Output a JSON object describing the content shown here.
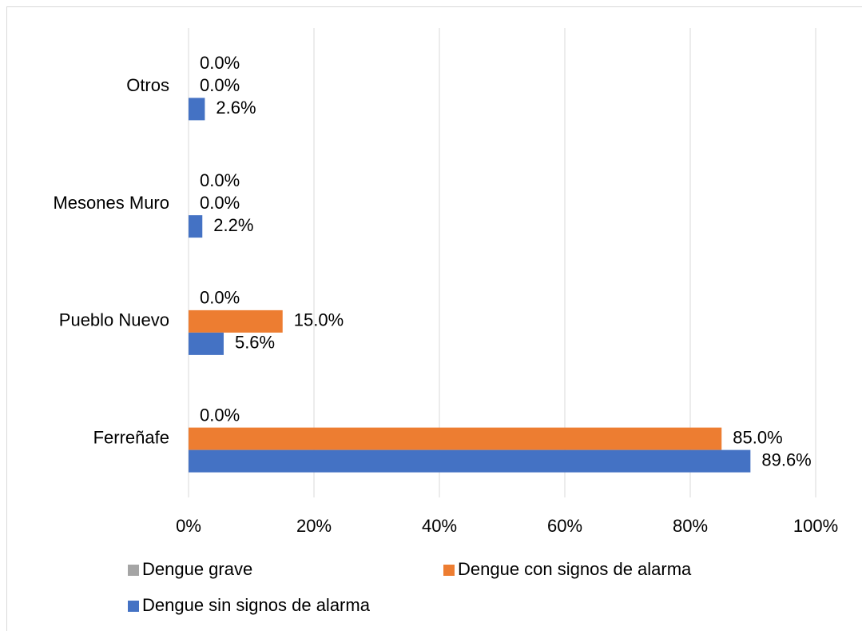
{
  "chart_data": {
    "type": "hbar",
    "categories": [
      "Ferreñafe",
      "Pueblo Nuevo",
      "Mesones Muro",
      "Otros"
    ],
    "series": [
      {
        "name": "Dengue grave",
        "color": "#a5a5a5",
        "values": [
          0,
          0,
          0,
          0
        ],
        "value_labels": [
          "0.0%",
          "0.0%",
          "0.0%",
          "0.0%"
        ]
      },
      {
        "name": "Dengue con signos de alarma",
        "color": "#ed7d31",
        "values": [
          85,
          15,
          0,
          0
        ],
        "value_labels": [
          "85.0%",
          "15.0%",
          "0.0%",
          "0.0%"
        ]
      },
      {
        "name": "Dengue sin signos de alarma",
        "color": "#4472c4",
        "values": [
          89.6,
          5.6,
          2.2,
          2.6
        ],
        "value_labels": [
          "89.6%",
          "5.6%",
          "2.2%",
          "2.6%"
        ]
      }
    ],
    "xlim": [
      0,
      100
    ],
    "xticks": [
      {
        "value": 0,
        "label": "0%"
      },
      {
        "value": 20,
        "label": "20%"
      },
      {
        "value": 40,
        "label": "40%"
      },
      {
        "value": 60,
        "label": "60%"
      },
      {
        "value": 80,
        "label": "80%"
      },
      {
        "value": 100,
        "label": "100%"
      }
    ],
    "grid": true,
    "legend": "bottom"
  }
}
